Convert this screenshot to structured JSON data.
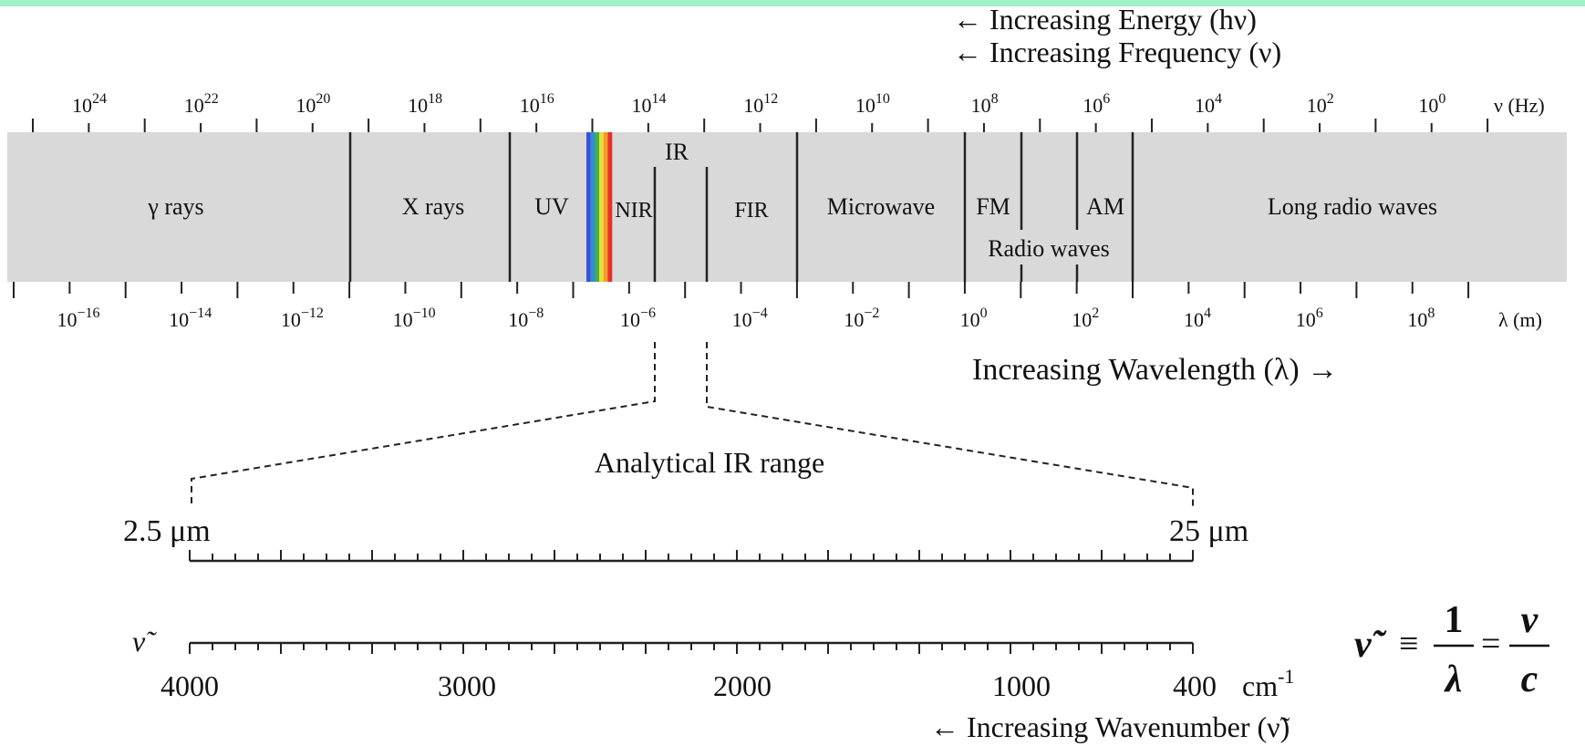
{
  "colors": {
    "top_bar": "#9ef2c8",
    "band_fill": "#d9d9d9",
    "ink": "#111111"
  },
  "arrows": {
    "energy": "← Increasing Energy (hν)",
    "frequency": "← Increasing Frequency (ν)",
    "wavelength": "Increasing Wavelength (λ) →",
    "wavenumber": "← Increasing Wavenumber (ν̃)"
  },
  "frequency_axis": {
    "unit": "ν (Hz)",
    "ticks": [
      {
        "base": "10",
        "exp": "24"
      },
      {
        "base": "10",
        "exp": "22"
      },
      {
        "base": "10",
        "exp": "20"
      },
      {
        "base": "10",
        "exp": "18"
      },
      {
        "base": "10",
        "exp": "16"
      },
      {
        "base": "10",
        "exp": "14"
      },
      {
        "base": "10",
        "exp": "12"
      },
      {
        "base": "10",
        "exp": "10"
      },
      {
        "base": "10",
        "exp": "8"
      },
      {
        "base": "10",
        "exp": "6"
      },
      {
        "base": "10",
        "exp": "4"
      },
      {
        "base": "10",
        "exp": "2"
      },
      {
        "base": "10",
        "exp": "0"
      }
    ]
  },
  "wavelength_axis": {
    "unit": "λ (m)",
    "ticks": [
      {
        "base": "10",
        "exp": "−16"
      },
      {
        "base": "10",
        "exp": "−14"
      },
      {
        "base": "10",
        "exp": "−12"
      },
      {
        "base": "10",
        "exp": "−10"
      },
      {
        "base": "10",
        "exp": "−8"
      },
      {
        "base": "10",
        "exp": "−6"
      },
      {
        "base": "10",
        "exp": "−4"
      },
      {
        "base": "10",
        "exp": "−2"
      },
      {
        "base": "10",
        "exp": "0"
      },
      {
        "base": "10",
        "exp": "2"
      },
      {
        "base": "10",
        "exp": "4"
      },
      {
        "base": "10",
        "exp": "6"
      },
      {
        "base": "10",
        "exp": "8"
      }
    ]
  },
  "bands": {
    "gamma": "γ rays",
    "xray": "X rays",
    "uv": "UV",
    "ir": "IR",
    "nir": "NIR",
    "fir": "FIR",
    "microwave": "Microwave",
    "fm": "FM",
    "am": "AM",
    "radio": "Radio waves",
    "long_radio": "Long radio waves"
  },
  "visible_spectrum_colors": [
    "#3b4fd6",
    "#2f8ed8",
    "#3fb24a",
    "#e6e034",
    "#f39a2b",
    "#e8302a"
  ],
  "analytical_range": {
    "title": "Analytical IR range",
    "left_label": "2.5 μm",
    "right_label": "25 μm"
  },
  "wavenumber_scale": {
    "symbol": "ν̃",
    "unit": "cm",
    "unit_exp": "-1",
    "ticks": [
      "4000",
      "3000",
      "2000",
      "1000",
      "400"
    ]
  },
  "formula": {
    "lhs": "ν̃",
    "eq": "≡",
    "num1": "1",
    "den1": "λ",
    "eq2": "=",
    "num2": "ν",
    "den2": "c"
  }
}
